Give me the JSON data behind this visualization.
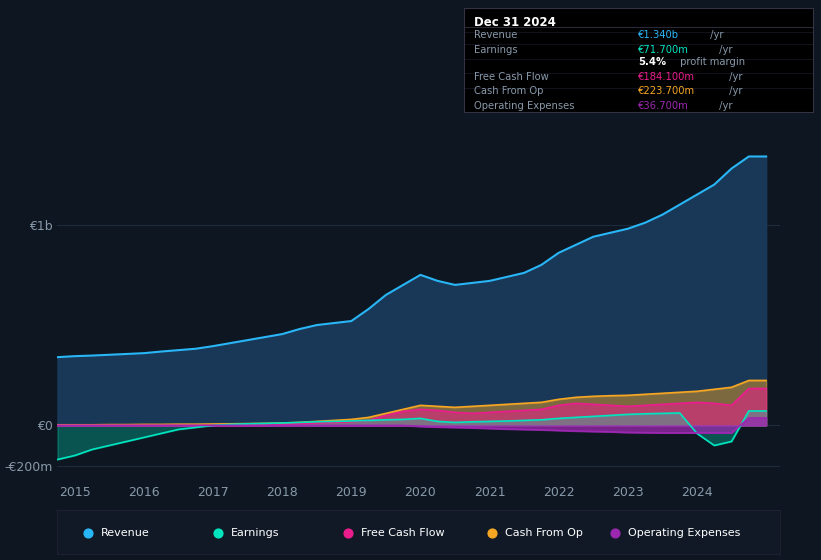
{
  "background_color": "#0e1621",
  "plot_bg_color": "#0e1621",
  "grid_color": "#1e2d3d",
  "text_color": "#8899aa",
  "title_color": "#ffffff",
  "years": [
    2014.75,
    2015.0,
    2015.25,
    2015.5,
    2015.75,
    2016.0,
    2016.25,
    2016.5,
    2016.75,
    2017.0,
    2017.25,
    2017.5,
    2017.75,
    2018.0,
    2018.25,
    2018.5,
    2018.75,
    2019.0,
    2019.25,
    2019.5,
    2019.75,
    2020.0,
    2020.25,
    2020.5,
    2020.75,
    2021.0,
    2021.25,
    2021.5,
    2021.75,
    2022.0,
    2022.25,
    2022.5,
    2022.75,
    2023.0,
    2023.25,
    2023.5,
    2023.75,
    2024.0,
    2024.25,
    2024.5,
    2024.75,
    2025.0
  ],
  "revenue": [
    340,
    345,
    348,
    352,
    356,
    360,
    368,
    375,
    382,
    395,
    410,
    425,
    440,
    455,
    480,
    500,
    510,
    520,
    580,
    650,
    700,
    750,
    720,
    700,
    710,
    720,
    740,
    760,
    800,
    860,
    900,
    940,
    960,
    980,
    1010,
    1050,
    1100,
    1150,
    1200,
    1280,
    1340,
    1340
  ],
  "earnings": [
    -170,
    -150,
    -120,
    -100,
    -80,
    -60,
    -40,
    -20,
    -10,
    0,
    5,
    8,
    10,
    12,
    15,
    18,
    20,
    22,
    25,
    28,
    30,
    35,
    20,
    15,
    18,
    20,
    22,
    25,
    28,
    35,
    40,
    45,
    50,
    55,
    58,
    60,
    62,
    -40,
    -100,
    -80,
    72,
    72
  ],
  "free_cash_flow": [
    0,
    0,
    0,
    0,
    0,
    0,
    0,
    0,
    0,
    0,
    0,
    0,
    0,
    5,
    8,
    12,
    15,
    18,
    25,
    50,
    70,
    80,
    75,
    65,
    60,
    65,
    70,
    75,
    80,
    100,
    110,
    105,
    100,
    95,
    100,
    105,
    110,
    115,
    110,
    100,
    184,
    184
  ],
  "cash_from_op": [
    3,
    3,
    3,
    4,
    4,
    5,
    5,
    6,
    6,
    7,
    8,
    9,
    10,
    12,
    15,
    20,
    25,
    30,
    40,
    60,
    80,
    100,
    95,
    90,
    95,
    100,
    105,
    110,
    115,
    130,
    140,
    145,
    148,
    150,
    155,
    160,
    165,
    170,
    180,
    190,
    224,
    224
  ],
  "operating_expenses": [
    0,
    0,
    0,
    0,
    0,
    0,
    0,
    0,
    0,
    0,
    0,
    0,
    0,
    0,
    0,
    0,
    0,
    0,
    0,
    0,
    0,
    -5,
    -8,
    -10,
    -12,
    -15,
    -18,
    -20,
    -22,
    -25,
    -28,
    -30,
    -32,
    -35,
    -36,
    -37,
    -37,
    -37,
    -37,
    -37,
    37,
    37
  ],
  "revenue_color": "#29b6f6",
  "earnings_color": "#00e5c0",
  "fcf_color": "#e91e8c",
  "cashop_color": "#f5a623",
  "opex_color": "#9c27b0",
  "revenue_fill": "#1a3a5c",
  "legend_bg": "#111927",
  "info_box_bg": "#000000",
  "info_box_border": "#333344",
  "info_title": "Dec 31 2024",
  "legend_items": [
    {
      "label": "Revenue",
      "color": "#29b6f6"
    },
    {
      "label": "Earnings",
      "color": "#00e5c0"
    },
    {
      "label": "Free Cash Flow",
      "color": "#e91e8c"
    },
    {
      "label": "Cash From Op",
      "color": "#f5a623"
    },
    {
      "label": "Operating Expenses",
      "color": "#9c27b0"
    }
  ],
  "xlim": [
    2014.75,
    2025.2
  ],
  "ylim": [
    -280,
    1450
  ],
  "xticks": [
    2015,
    2016,
    2017,
    2018,
    2019,
    2020,
    2021,
    2022,
    2023,
    2024
  ],
  "ytick_positions": [
    -200,
    0,
    1000
  ],
  "ytick_labels": [
    "-€200m",
    "€0",
    "€1b"
  ]
}
